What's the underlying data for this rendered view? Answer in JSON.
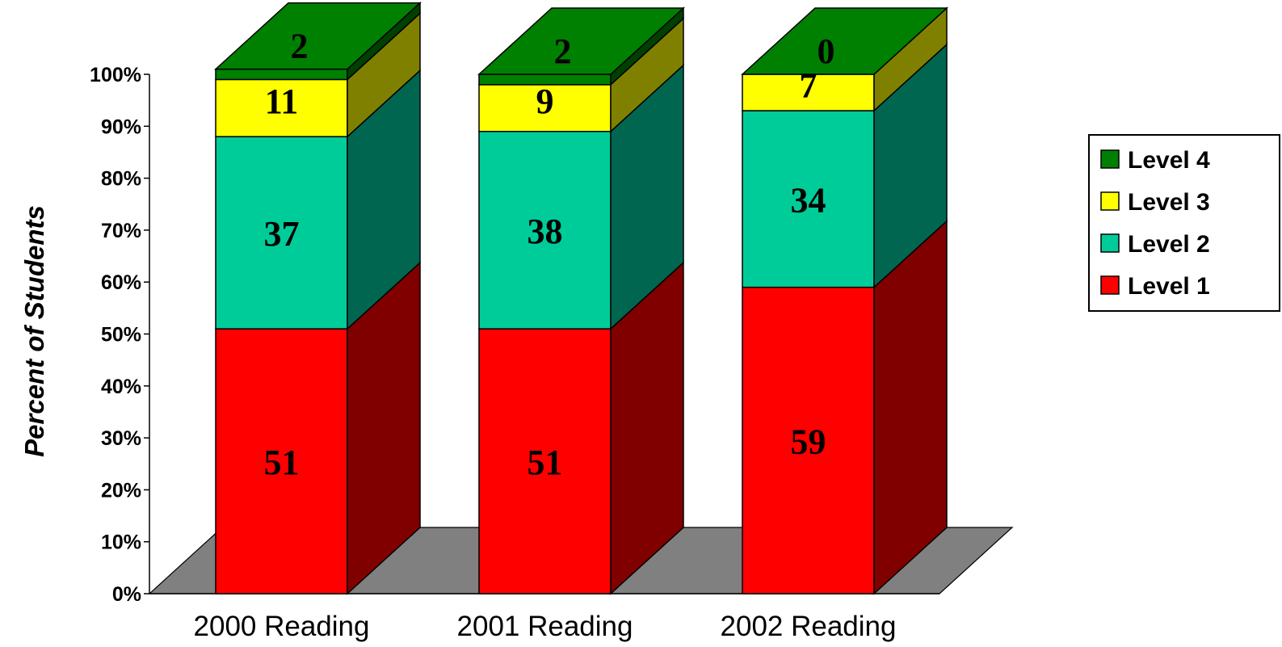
{
  "chart_data": {
    "type": "bar",
    "stacked": true,
    "three_d": true,
    "categories": [
      "2000 Reading",
      "2001 Reading",
      "2002 Reading"
    ],
    "series": [
      {
        "name": "Level 1",
        "values": [
          51,
          51,
          59
        ],
        "color": "#FF0000",
        "side_color": "#800000"
      },
      {
        "name": "Level 2",
        "values": [
          37,
          38,
          34
        ],
        "color": "#00CC99",
        "side_color": "#006650"
      },
      {
        "name": "Level 3",
        "values": [
          11,
          9,
          7
        ],
        "color": "#FFFF00",
        "side_color": "#808000"
      },
      {
        "name": "Level 4",
        "values": [
          2,
          2,
          0
        ],
        "color": "#008000",
        "side_color": "#004000"
      }
    ],
    "title": "",
    "xlabel": "",
    "ylabel": "Percent of Students",
    "ylim": [
      0,
      100
    ],
    "yticks": [
      "0%",
      "10%",
      "20%",
      "30%",
      "40%",
      "50%",
      "60%",
      "70%",
      "80%",
      "90%",
      "100%"
    ],
    "legend_order": [
      "Level 4",
      "Level 3",
      "Level 2",
      "Level 1"
    ],
    "legend_position": "right",
    "floor_color": "#808080",
    "grid": false
  }
}
